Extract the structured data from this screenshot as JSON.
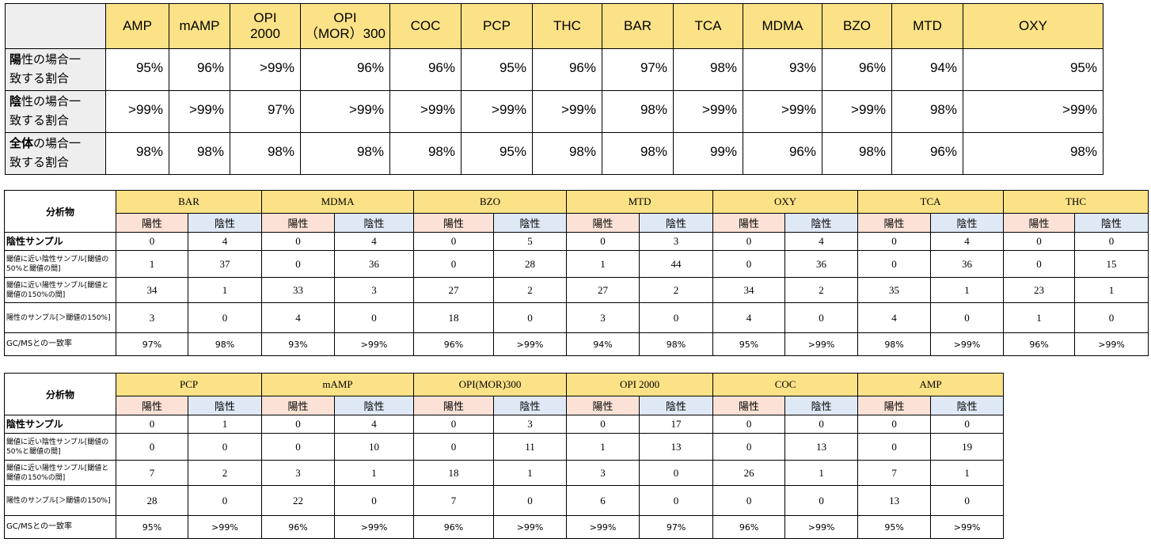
{
  "summary_table": {
    "headers": [
      "AMP",
      "mAMP",
      "OPI\n2000",
      "OPI\n（MOR）300",
      "COC",
      "PCP",
      "THC",
      "BAR",
      "TCA",
      "MDMA",
      "BZO",
      "MTD",
      "OXY"
    ],
    "rows": [
      {
        "label_bold": "陽",
        "label_rest1": "性の場合一",
        "label_line2": "致する割合",
        "values": [
          "95%",
          "96%",
          ">99%",
          "96%",
          "96%",
          "95%",
          "96%",
          "97%",
          "98%",
          "93%",
          "96%",
          "94%",
          "95%"
        ]
      },
      {
        "label_bold": "陰",
        "label_rest1": "性の場合一",
        "label_line2": "致する割合",
        "values": [
          ">99%",
          ">99%",
          "97%",
          ">99%",
          ">99%",
          ">99%",
          ">99%",
          "98%",
          ">99%",
          ">99%",
          ">99%",
          "98%",
          ">99%"
        ]
      },
      {
        "label_bold": "全体",
        "label_rest1": "の場合一",
        "label_line2": "致する割合",
        "values": [
          "98%",
          "98%",
          "98%",
          "98%",
          "98%",
          "95%",
          "98%",
          "98%",
          "99%",
          "96%",
          "98%",
          "96%",
          "98%"
        ]
      }
    ]
  },
  "detail_labels": {
    "analyte": "分析物",
    "positive": "陽性",
    "negative": "陰性",
    "row_negative_sample": "陰性サンプル",
    "row_near_negative": "閾値に近い陰性サンプル[閾値の50%と閾値の間]",
    "row_near_positive": "閾値に近い陽性サンプル[閾値と閾値の150%の間]",
    "row_positive_sample": "陽性のサンプル[＞閾値の150%]",
    "row_gcms": "GC/MSとの一致率"
  },
  "detail_table_1": [
    {
      "name": "BAR",
      "pos": [
        "0",
        "1",
        "34",
        "3",
        "97%"
      ],
      "neg": [
        "4",
        "37",
        "1",
        "0",
        "98%"
      ]
    },
    {
      "name": "MDMA",
      "pos": [
        "0",
        "0",
        "33",
        "4",
        "93%"
      ],
      "neg": [
        "4",
        "36",
        "3",
        "0",
        ">99%"
      ]
    },
    {
      "name": "BZO",
      "pos": [
        "0",
        "0",
        "27",
        "18",
        "96%"
      ],
      "neg": [
        "5",
        "28",
        "2",
        "0",
        ">99%"
      ]
    },
    {
      "name": "MTD",
      "pos": [
        "0",
        "1",
        "27",
        "3",
        "94%"
      ],
      "neg": [
        "3",
        "44",
        "2",
        "0",
        "98%"
      ]
    },
    {
      "name": "OXY",
      "pos": [
        "0",
        "0",
        "34",
        "4",
        "95%"
      ],
      "neg": [
        "4",
        "36",
        "2",
        "0",
        ">99%"
      ]
    },
    {
      "name": "TCA",
      "pos": [
        "0",
        "0",
        "35",
        "4",
        "98%"
      ],
      "neg": [
        "4",
        "36",
        "1",
        "0",
        ">99%"
      ]
    },
    {
      "name": "THC",
      "pos": [
        "0",
        "0",
        "23",
        "1",
        "96%"
      ],
      "neg": [
        "0",
        "15",
        "1",
        "0",
        ">99%"
      ]
    }
  ],
  "detail_table_2": [
    {
      "name": "PCP",
      "pos": [
        "0",
        "0",
        "7",
        "28",
        "95%"
      ],
      "neg": [
        "1",
        "0",
        "2",
        "0",
        ">99%"
      ]
    },
    {
      "name": "mAMP",
      "pos": [
        "0",
        "0",
        "3",
        "22",
        "96%"
      ],
      "neg": [
        "4",
        "10",
        "1",
        "0",
        ">99%"
      ]
    },
    {
      "name": "OPI(MOR)300",
      "pos": [
        "0",
        "0",
        "18",
        "7",
        "96%"
      ],
      "neg": [
        "3",
        "11",
        "1",
        "0",
        ">99%"
      ]
    },
    {
      "name": "OPI 2000",
      "pos": [
        "0",
        "1",
        "3",
        "6",
        ">99%"
      ],
      "neg": [
        "17",
        "13",
        "0",
        "0",
        "97%"
      ]
    },
    {
      "name": "COC",
      "pos": [
        "0",
        "0",
        "26",
        "0",
        "96%"
      ],
      "neg": [
        "0",
        "13",
        "1",
        "0",
        ">99%"
      ]
    },
    {
      "name": "AMP",
      "pos": [
        "0",
        "0",
        "7",
        "13",
        "95%"
      ],
      "neg": [
        "0",
        "19",
        "1",
        "0",
        ">99%"
      ]
    }
  ]
}
